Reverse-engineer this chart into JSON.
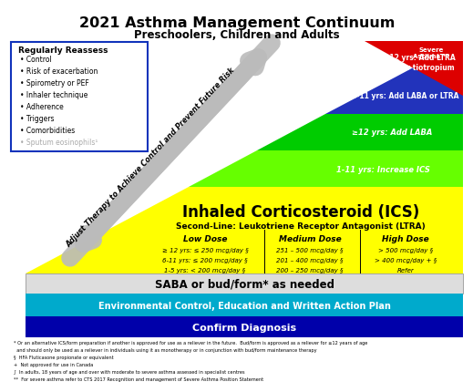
{
  "title": "2021 Asthma Management Continuum",
  "subtitle": "Preschoolers, Children and Adults",
  "title_fontsize": 11.5,
  "subtitle_fontsize": 8.5,
  "reassess_title": "Regularly Reassess",
  "reassess_items": [
    "Control",
    "Risk of exacerbation",
    "Spirometry or PEF",
    "Inhaler technique",
    "Adherence",
    "Triggers",
    "Comorbidities",
    "Sputum eosinophils¹"
  ],
  "diagonal_label": "Adjust Therapy to Achieve Control and Prevent Future Risk",
  "ics_label": "Inhaled Corticosteroid (ICS)",
  "ltra_label": "Second-Line: Leukotriene Receptor Antagonist (LTRA)",
  "low_dose_title": "Low Dose",
  "low_dose_lines": [
    "≥ 12 yrs: ≤ 250 mcg/day §",
    "6-11 yrs: ≤ 200 mcg/day §",
    "1-5 yrs: < 200 mcg/day §"
  ],
  "med_dose_title": "Medium Dose",
  "med_dose_lines": [
    "251 – 500 mcg/day §",
    "201 – 400 mcg/day §",
    "200 – 250 mcg/day §"
  ],
  "high_dose_title": "High Dose",
  "high_dose_lines": [
    "> 500 mcg/day §",
    "> 400 mcg/day + §",
    "Refer"
  ],
  "saba_label": "SABA or bud/form* as needed",
  "env_label": "Environmental Control, Education and Written Action Plan",
  "confirm_label": "Confirm Diagnosis",
  "severe_label": "Severe\nAsthma **",
  "band1_label": "≥12 yrs: Add LTRA\nand/or tiotropium",
  "band2_label": "6-11 yrs: Add LABA or LTRA",
  "band3_label": "≥12 yrs: Add LABA",
  "band4_label": "1-11 yrs: Increase ICS",
  "footnote1": "* Or an alternative ICS/form preparation if another is approved for use as a reliever in the future.  Bud/form is approved as a reliever for ≥12 years of age",
  "footnote1b": "  and should only be used as a reliever in individuals using it as monotherapy or in conjunction with bud/form maintenance therapy",
  "footnote2": "§  HFA Fluticasone propionate or equivalent",
  "footnote3": "+  Not approved for use in Canada",
  "footnote4": "∫  In adults, 18 years of age and over with moderate to severe asthma assessed in specialist centres",
  "footnote5": "**  For severe asthma refer to CTS 2017 Recognition and management of Severe Asthma Position Statement",
  "color_yellow": "#FFFF00",
  "color_limegreen": "#66FF00",
  "color_green": "#00CC00",
  "color_blue": "#2233BB",
  "color_red": "#DD0000",
  "color_gray_arrow": "#BBBBBB",
  "color_saba_bg": "#DDDDDD",
  "color_env": "#00AACC",
  "color_confirm": "#0000AA",
  "color_box_border": "#1133BB",
  "color_white": "#FFFFFF",
  "color_black": "#000000"
}
